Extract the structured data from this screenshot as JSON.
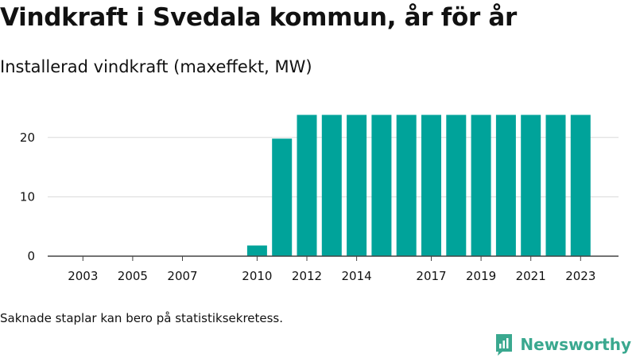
{
  "header": {
    "title": "Vindkraft i Svedala kommun, år för år",
    "subtitle": "Installerad vindkraft (maxeffekt, MW)"
  },
  "footer": {
    "note": "Saknade staplar kan bero på statistiksekretess.",
    "brand": "Newsworthy"
  },
  "colors": {
    "bar": "#00a39a",
    "brand": "#3aa88f",
    "axis": "#444444",
    "grid": "#d9d9d9",
    "text": "#111111"
  },
  "icons": {
    "brand_logo": "newsworthy-logo-icon"
  },
  "chart_data": {
    "type": "bar",
    "title": "Vindkraft i Svedala kommun, år för år",
    "subtitle": "Installerad vindkraft (maxeffekt, MW)",
    "xlabel": "",
    "ylabel": "",
    "ylim": [
      0,
      26
    ],
    "yticks": [
      0,
      10,
      20
    ],
    "grid": true,
    "categories": [
      "2002",
      "2003",
      "2004",
      "2005",
      "2006",
      "2007",
      "2008",
      "2009",
      "2010",
      "2011",
      "2012",
      "2013",
      "2014",
      "2015",
      "2016",
      "2017",
      "2018",
      "2019",
      "2020",
      "2021",
      "2022",
      "2023"
    ],
    "values": [
      null,
      null,
      null,
      null,
      null,
      null,
      null,
      null,
      1.8,
      19.8,
      23.8,
      23.8,
      23.8,
      23.8,
      23.8,
      23.8,
      23.8,
      23.8,
      23.8,
      23.8,
      23.8,
      23.8
    ],
    "x_tick_labels": [
      "2003",
      "2005",
      "2007",
      "2010",
      "2012",
      "2014",
      "2017",
      "2019",
      "2021",
      "2023"
    ]
  }
}
